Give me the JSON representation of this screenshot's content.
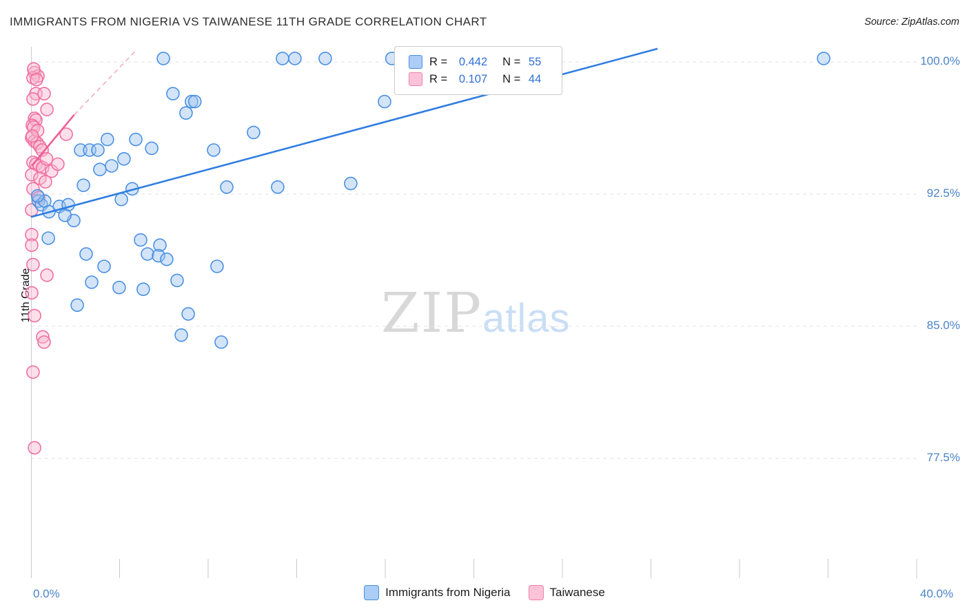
{
  "header": {
    "title": "IMMIGRANTS FROM NIGERIA VS TAIWANESE 11TH GRADE CORRELATION CHART",
    "source": "Source: ZipAtlas.com"
  },
  "watermark": {
    "part1": "ZIP",
    "part2": "atlas"
  },
  "legend_box": {
    "rows": [
      {
        "r_label": "R = ",
        "r_value": "0.442",
        "n_label": "N = ",
        "n_value": "55"
      },
      {
        "r_label": "R = ",
        "r_value": "0.107",
        "n_label": "N = ",
        "n_value": "44"
      }
    ]
  },
  "bottom_legend": {
    "items": [
      {
        "label": "Immigrants from Nigeria"
      },
      {
        "label": "Taiwanese"
      }
    ]
  },
  "chart_data": {
    "type": "scatter",
    "title": "Immigrants from Nigeria vs Taiwanese 11th Grade correlation",
    "x_axis": {
      "min": 0,
      "max": 40,
      "min_label": "0.0%",
      "max_label": "40.0%",
      "tick_step": 4,
      "unit": "%"
    },
    "y_axis": {
      "label": "11th Grade",
      "unit": "%",
      "gridline_values": [
        100,
        92.5,
        85,
        77.5
      ],
      "tick_labels": [
        "100.0%",
        "92.5%",
        "85.0%",
        "77.5%"
      ],
      "ylim": [
        71,
        100.8
      ]
    },
    "series": [
      {
        "name": "Immigrants from Nigeria",
        "color": "#4a90e2",
        "fill": "#9dc3f0",
        "r": 0.442,
        "n": 55,
        "points": [
          [
            5.98,
            100.2
          ],
          [
            11.36,
            100.2
          ],
          [
            11.92,
            100.2
          ],
          [
            13.29,
            100.2
          ],
          [
            16.3,
            100.2
          ],
          [
            16.9,
            100.2
          ],
          [
            35.8,
            100.2
          ],
          [
            6.41,
            98.2
          ],
          [
            7.0,
            97.1
          ],
          [
            7.25,
            97.75
          ],
          [
            7.4,
            97.75
          ],
          [
            15.97,
            97.75
          ],
          [
            10.05,
            96.0
          ],
          [
            4.73,
            95.6
          ],
          [
            2.24,
            95.0
          ],
          [
            2.65,
            95.0
          ],
          [
            3.02,
            95.0
          ],
          [
            3.45,
            95.6
          ],
          [
            5.45,
            95.1
          ],
          [
            8.25,
            95.0
          ],
          [
            4.2,
            94.5
          ],
          [
            3.11,
            93.9
          ],
          [
            3.64,
            94.1
          ],
          [
            2.37,
            93.0
          ],
          [
            4.57,
            92.8
          ],
          [
            8.84,
            92.9
          ],
          [
            11.14,
            92.9
          ],
          [
            14.44,
            93.1
          ],
          [
            4.08,
            92.2
          ],
          [
            0.34,
            92.1
          ],
          [
            0.47,
            91.9
          ],
          [
            0.62,
            92.1
          ],
          [
            0.3,
            92.4
          ],
          [
            1.28,
            91.8
          ],
          [
            1.68,
            91.9
          ],
          [
            1.93,
            91.0
          ],
          [
            0.81,
            91.5
          ],
          [
            1.53,
            91.3
          ],
          [
            0.78,
            90.0
          ],
          [
            4.95,
            89.9
          ],
          [
            5.82,
            89.6
          ],
          [
            2.49,
            89.1
          ],
          [
            5.26,
            89.1
          ],
          [
            5.76,
            89.0
          ],
          [
            6.13,
            88.8
          ],
          [
            3.3,
            88.4
          ],
          [
            8.4,
            88.4
          ],
          [
            2.74,
            87.5
          ],
          [
            3.98,
            87.2
          ],
          [
            5.07,
            87.1
          ],
          [
            6.6,
            87.6
          ],
          [
            2.09,
            86.2
          ],
          [
            7.1,
            85.7
          ],
          [
            6.79,
            84.5
          ],
          [
            8.59,
            84.1
          ]
        ]
      },
      {
        "name": "Taiwanese",
        "color": "#f06fa0",
        "fill": "#f9b8cf",
        "r": 0.107,
        "n": 44,
        "points": [
          [
            0.16,
            99.4
          ],
          [
            0.31,
            99.2
          ],
          [
            0.09,
            99.1
          ],
          [
            0.12,
            99.6
          ],
          [
            0.25,
            99.0
          ],
          [
            0.22,
            98.2
          ],
          [
            0.59,
            98.2
          ],
          [
            0.09,
            97.9
          ],
          [
            0.72,
            97.3
          ],
          [
            0.16,
            96.8
          ],
          [
            0.22,
            96.7
          ],
          [
            0.06,
            96.4
          ],
          [
            0.12,
            96.3
          ],
          [
            0.03,
            95.7
          ],
          [
            0.16,
            95.5
          ],
          [
            0.28,
            95.4
          ],
          [
            1.59,
            95.9
          ],
          [
            0.4,
            95.2
          ],
          [
            0.5,
            95.0
          ],
          [
            0.3,
            96.1
          ],
          [
            0.06,
            95.8
          ],
          [
            0.09,
            94.3
          ],
          [
            0.22,
            94.2
          ],
          [
            0.37,
            94.1
          ],
          [
            0.53,
            94.0
          ],
          [
            0.03,
            93.6
          ],
          [
            0.93,
            93.8
          ],
          [
            1.21,
            94.2
          ],
          [
            0.7,
            94.5
          ],
          [
            0.4,
            93.4
          ],
          [
            0.65,
            93.2
          ],
          [
            0.09,
            92.8
          ],
          [
            0.35,
            92.3
          ],
          [
            0.03,
            91.6
          ],
          [
            0.03,
            90.2
          ],
          [
            0.03,
            89.6
          ],
          [
            0.09,
            88.5
          ],
          [
            0.72,
            87.9
          ],
          [
            0.03,
            86.9
          ],
          [
            0.16,
            85.6
          ],
          [
            0.53,
            84.4
          ],
          [
            0.59,
            84.1
          ],
          [
            0.09,
            82.4
          ],
          [
            0.16,
            78.1
          ]
        ]
      }
    ],
    "trend_lines": [
      {
        "series": "Immigrants from Nigeria",
        "style": "solid",
        "color": "#2f7de1",
        "width": 2.6,
        "x1": 0,
        "y1": 91.2,
        "x2": 28.3,
        "y2": 100.75
      },
      {
        "series": "Taiwanese",
        "style": "solid",
        "color": "#ec5f94",
        "width": 2.6,
        "x1": 0.03,
        "y1": 94.1,
        "x2": 1.95,
        "y2": 97.0
      },
      {
        "series": "Taiwanese extension",
        "style": "dashed",
        "color": "#f2a6c0",
        "width": 1.5,
        "x1": 1.95,
        "y1": 97.0,
        "x2": 4.7,
        "y2": 100.6
      }
    ],
    "legend_position": "top-center",
    "grid": "horizontal-dashed"
  }
}
